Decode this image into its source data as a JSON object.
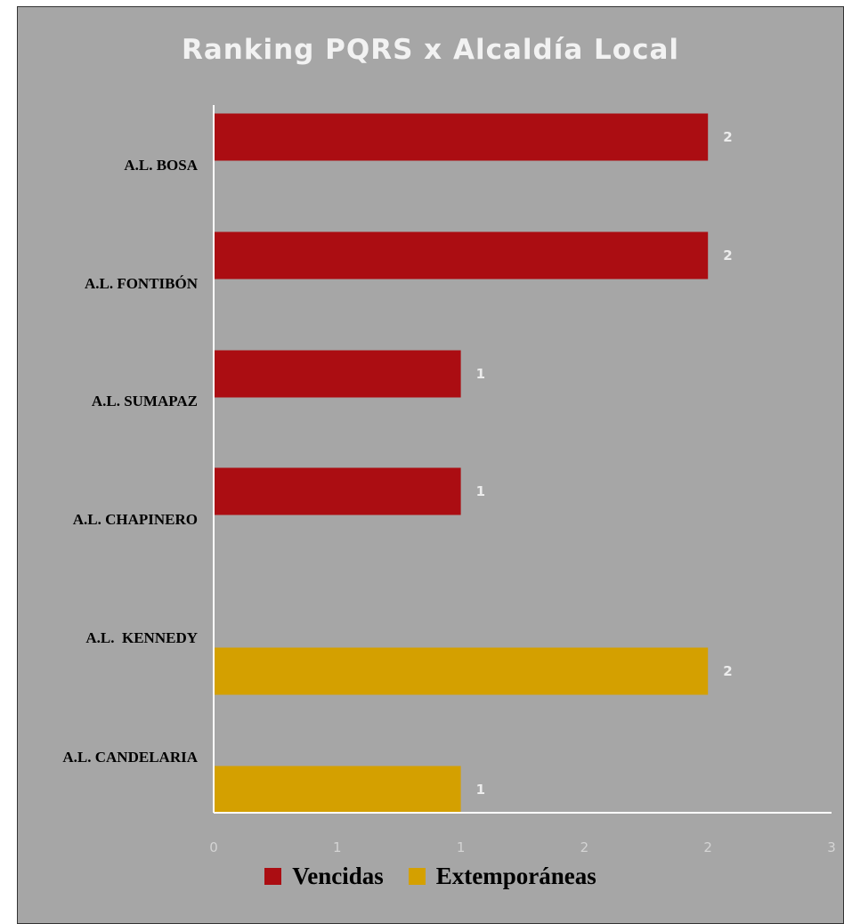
{
  "chart_data": {
    "type": "bar",
    "orientation": "horizontal",
    "title": "Ranking PQRS x Alcaldía Local",
    "categories": [
      "A.L. BOSA",
      "A.L. FONTIBÓN",
      "A.L. SUMAPAZ",
      "A.L. CHAPINERO",
      "A.L.  KENNEDY",
      "A.L. CANDELARIA"
    ],
    "series": [
      {
        "name": "Vencidas",
        "color": "#ab0d12",
        "values": [
          2,
          2,
          1,
          1,
          null,
          null
        ],
        "labels": [
          "2",
          "2",
          "1",
          "1",
          "",
          ""
        ]
      },
      {
        "name": "Extemporáneas",
        "color": "#d4a000",
        "values": [
          null,
          null,
          null,
          null,
          2,
          1
        ],
        "labels": [
          "",
          "",
          "",
          "",
          "2",
          "1"
        ]
      }
    ],
    "xlim": [
      0,
      2.5
    ],
    "tick_values": [
      0,
      0.5,
      1,
      1.5,
      2,
      2.5
    ],
    "tick_labels": [
      "0",
      "1",
      "1",
      "2",
      "2",
      "3"
    ],
    "grid": false,
    "legend_position": "bottom"
  }
}
